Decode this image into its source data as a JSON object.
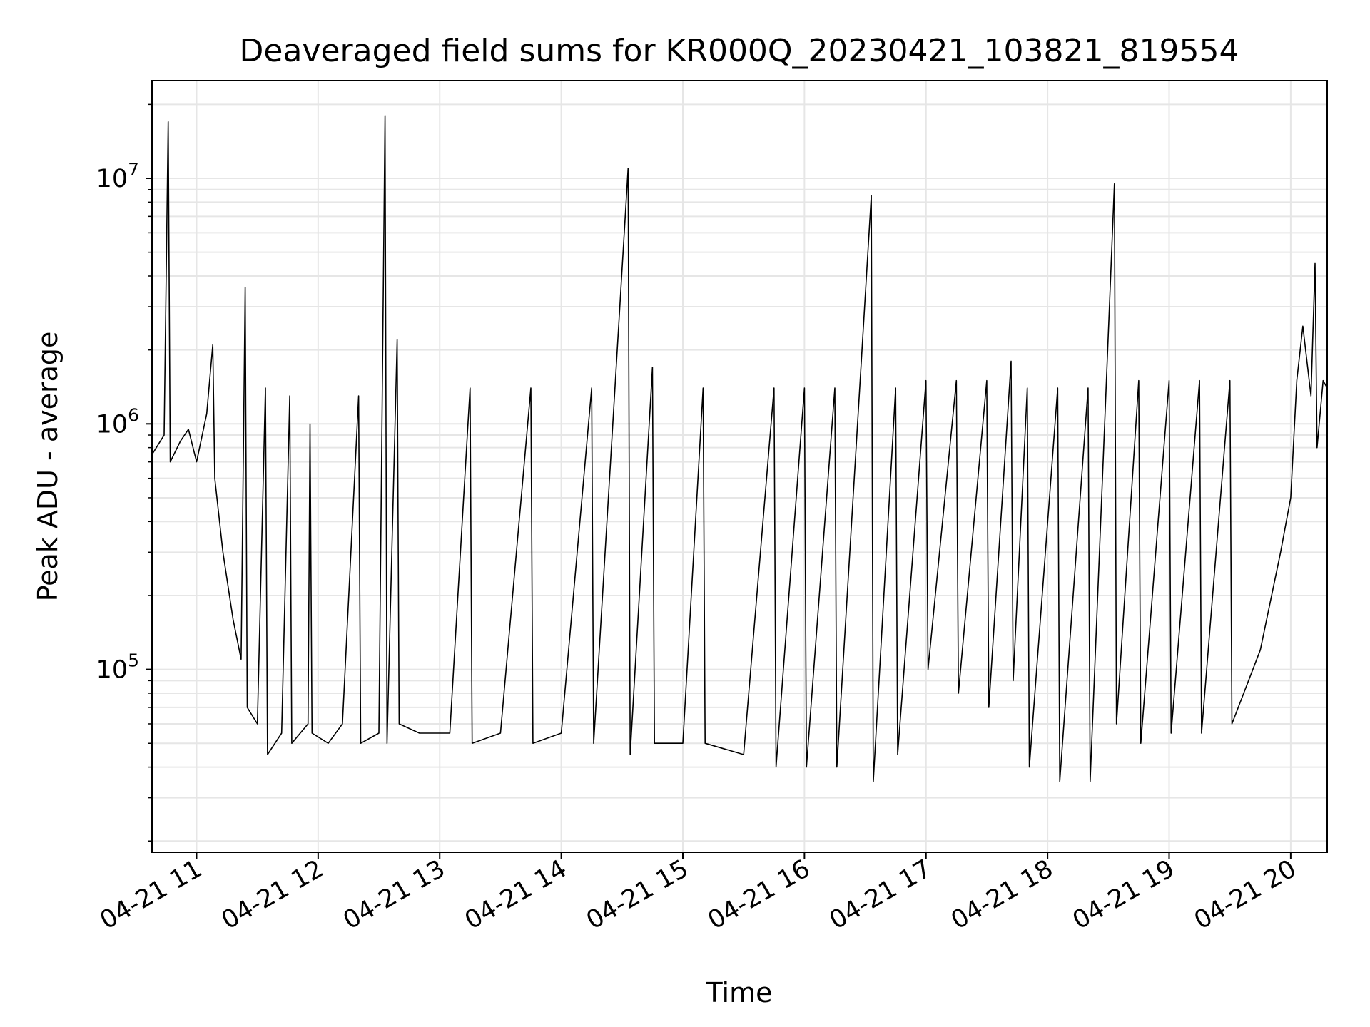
{
  "chart_data": {
    "type": "line",
    "title": "Deaveraged field sums for KR000Q_20230421_103821_819554",
    "xlabel": "Time",
    "ylabel": "Peak ADU - average",
    "yscale": "log",
    "grid": true,
    "line_color": "#000000",
    "grid_color": "#e6e6e6",
    "xlim": [
      "2023-04-21 10:38",
      "2023-04-21 20:18"
    ],
    "ylim": [
      18000,
      25000000
    ],
    "x_ticks": [
      "2023-04-21 11:00",
      "2023-04-21 12:00",
      "2023-04-21 13:00",
      "2023-04-21 14:00",
      "2023-04-21 15:00",
      "2023-04-21 16:00",
      "2023-04-21 17:00",
      "2023-04-21 18:00",
      "2023-04-21 19:00",
      "2023-04-21 20:00"
    ],
    "x_tick_labels": [
      "04-21 11",
      "04-21 12",
      "04-21 13",
      "04-21 14",
      "04-21 15",
      "04-21 16",
      "04-21 17",
      "04-21 18",
      "04-21 19",
      "04-21 20"
    ],
    "y_ticks": [
      {
        "value": 10000000,
        "base": "10",
        "exp": "7"
      },
      {
        "value": 1000000,
        "base": "10",
        "exp": "6"
      },
      {
        "value": 100000,
        "base": "10",
        "exp": "5"
      }
    ],
    "series": [
      {
        "points": [
          [
            "2023-04-21 10:38",
            750000
          ],
          [
            "2023-04-21 10:44",
            900000
          ],
          [
            "2023-04-21 10:46",
            17000000
          ],
          [
            "2023-04-21 10:47",
            700000
          ],
          [
            "2023-04-21 10:52",
            850000
          ],
          [
            "2023-04-21 10:56",
            950000
          ],
          [
            "2023-04-21 11:00",
            700000
          ],
          [
            "2023-04-21 11:05",
            1100000
          ],
          [
            "2023-04-21 11:08",
            2100000
          ],
          [
            "2023-04-21 11:09",
            600000
          ],
          [
            "2023-04-21 11:13",
            300000
          ],
          [
            "2023-04-21 11:18",
            160000
          ],
          [
            "2023-04-21 11:22",
            110000
          ],
          [
            "2023-04-21 11:24",
            3600000
          ],
          [
            "2023-04-21 11:25",
            70000
          ],
          [
            "2023-04-21 11:30",
            60000
          ],
          [
            "2023-04-21 11:34",
            1400000
          ],
          [
            "2023-04-21 11:35",
            45000
          ],
          [
            "2023-04-21 11:42",
            55000
          ],
          [
            "2023-04-21 11:46",
            1300000
          ],
          [
            "2023-04-21 11:47",
            50000
          ],
          [
            "2023-04-21 11:55",
            60000
          ],
          [
            "2023-04-21 11:56",
            1000000
          ],
          [
            "2023-04-21 11:57",
            55000
          ],
          [
            "2023-04-21 12:05",
            50000
          ],
          [
            "2023-04-21 12:12",
            60000
          ],
          [
            "2023-04-21 12:20",
            1300000
          ],
          [
            "2023-04-21 12:21",
            50000
          ],
          [
            "2023-04-21 12:30",
            55000
          ],
          [
            "2023-04-21 12:33",
            18000000
          ],
          [
            "2023-04-21 12:34",
            50000
          ],
          [
            "2023-04-21 12:39",
            2200000
          ],
          [
            "2023-04-21 12:40",
            60000
          ],
          [
            "2023-04-21 12:50",
            55000
          ],
          [
            "2023-04-21 13:05",
            55000
          ],
          [
            "2023-04-21 13:15",
            1400000
          ],
          [
            "2023-04-21 13:16",
            50000
          ],
          [
            "2023-04-21 13:30",
            55000
          ],
          [
            "2023-04-21 13:45",
            1400000
          ],
          [
            "2023-04-21 13:46",
            50000
          ],
          [
            "2023-04-21 14:00",
            55000
          ],
          [
            "2023-04-21 14:15",
            1400000
          ],
          [
            "2023-04-21 14:16",
            50000
          ],
          [
            "2023-04-21 14:33",
            11000000
          ],
          [
            "2023-04-21 14:34",
            45000
          ],
          [
            "2023-04-21 14:45",
            1700000
          ],
          [
            "2023-04-21 14:46",
            50000
          ],
          [
            "2023-04-21 15:00",
            50000
          ],
          [
            "2023-04-21 15:10",
            1400000
          ],
          [
            "2023-04-21 15:11",
            50000
          ],
          [
            "2023-04-21 15:30",
            45000
          ],
          [
            "2023-04-21 15:45",
            1400000
          ],
          [
            "2023-04-21 15:46",
            40000
          ],
          [
            "2023-04-21 16:00",
            1400000
          ],
          [
            "2023-04-21 16:01",
            40000
          ],
          [
            "2023-04-21 16:15",
            1400000
          ],
          [
            "2023-04-21 16:16",
            40000
          ],
          [
            "2023-04-21 16:33",
            8500000
          ],
          [
            "2023-04-21 16:34",
            35000
          ],
          [
            "2023-04-21 16:45",
            1400000
          ],
          [
            "2023-04-21 16:46",
            45000
          ],
          [
            "2023-04-21 17:00",
            1500000
          ],
          [
            "2023-04-21 17:01",
            100000
          ],
          [
            "2023-04-21 17:15",
            1500000
          ],
          [
            "2023-04-21 17:16",
            80000
          ],
          [
            "2023-04-21 17:30",
            1500000
          ],
          [
            "2023-04-21 17:31",
            70000
          ],
          [
            "2023-04-21 17:42",
            1800000
          ],
          [
            "2023-04-21 17:43",
            90000
          ],
          [
            "2023-04-21 17:50",
            1400000
          ],
          [
            "2023-04-21 17:51",
            40000
          ],
          [
            "2023-04-21 18:05",
            1400000
          ],
          [
            "2023-04-21 18:06",
            35000
          ],
          [
            "2023-04-21 18:20",
            1400000
          ],
          [
            "2023-04-21 18:21",
            35000
          ],
          [
            "2023-04-21 18:33",
            9500000
          ],
          [
            "2023-04-21 18:34",
            60000
          ],
          [
            "2023-04-21 18:45",
            1500000
          ],
          [
            "2023-04-21 18:46",
            50000
          ],
          [
            "2023-04-21 19:00",
            1500000
          ],
          [
            "2023-04-21 19:01",
            55000
          ],
          [
            "2023-04-21 19:15",
            1500000
          ],
          [
            "2023-04-21 19:16",
            55000
          ],
          [
            "2023-04-21 19:30",
            1500000
          ],
          [
            "2023-04-21 19:31",
            60000
          ],
          [
            "2023-04-21 19:45",
            120000
          ],
          [
            "2023-04-21 19:55",
            300000
          ],
          [
            "2023-04-21 20:00",
            500000
          ],
          [
            "2023-04-21 20:03",
            1500000
          ],
          [
            "2023-04-21 20:06",
            2500000
          ],
          [
            "2023-04-21 20:10",
            1300000
          ],
          [
            "2023-04-21 20:12",
            4500000
          ],
          [
            "2023-04-21 20:13",
            800000
          ],
          [
            "2023-04-21 20:16",
            1500000
          ],
          [
            "2023-04-21 20:18",
            1400000
          ]
        ]
      }
    ]
  }
}
